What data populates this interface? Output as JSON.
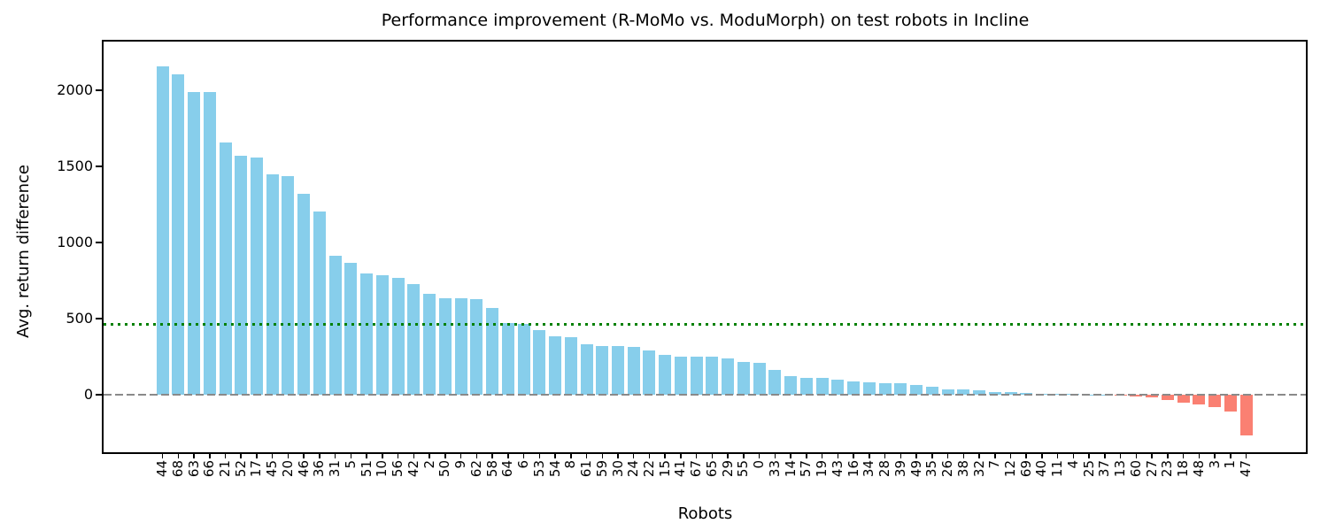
{
  "chart_data": {
    "type": "bar",
    "title": "Performance improvement (R-MoMo vs. ModuMorph) on test robots in Incline",
    "xlabel": "Robots",
    "ylabel": "Avg. return difference",
    "categories": [
      44,
      68,
      63,
      66,
      21,
      52,
      17,
      45,
      20,
      46,
      36,
      31,
      5,
      51,
      10,
      56,
      42,
      2,
      50,
      9,
      62,
      58,
      64,
      6,
      53,
      54,
      8,
      61,
      59,
      30,
      24,
      22,
      15,
      41,
      67,
      65,
      29,
      55,
      0,
      33,
      14,
      57,
      19,
      43,
      16,
      34,
      28,
      39,
      49,
      35,
      26,
      38,
      32,
      7,
      12,
      69,
      40,
      11,
      4,
      25,
      37,
      13,
      60,
      27,
      23,
      18,
      48,
      3,
      1,
      47
    ],
    "values": [
      2160,
      2105,
      1990,
      1990,
      1655,
      1570,
      1560,
      1450,
      1435,
      1320,
      1205,
      915,
      868,
      798,
      785,
      770,
      725,
      665,
      635,
      633,
      628,
      570,
      470,
      466,
      424,
      382,
      376,
      330,
      318,
      320,
      312,
      290,
      262,
      252,
      252,
      248,
      240,
      218,
      212,
      163,
      124,
      110,
      108,
      101,
      88,
      81,
      76,
      75,
      66,
      52,
      37,
      33,
      28,
      18,
      15,
      11,
      9,
      7,
      5,
      3,
      1,
      -6,
      -14,
      -20,
      -36,
      -54,
      -64,
      -82,
      -112,
      -265
    ],
    "yticks": [
      0,
      500,
      1000,
      1500,
      2000
    ],
    "ylim": [
      -378,
      2320
    ],
    "grid": false,
    "legend": "none",
    "bar_color_positive": "#87CEEB",
    "bar_color_negative": "#FA8072",
    "mean_line": {
      "value": 463,
      "color": "#008000",
      "style": "dotted"
    },
    "zero_line": {
      "value": 0,
      "color": "#8a8a8a",
      "style": "dashed"
    }
  }
}
